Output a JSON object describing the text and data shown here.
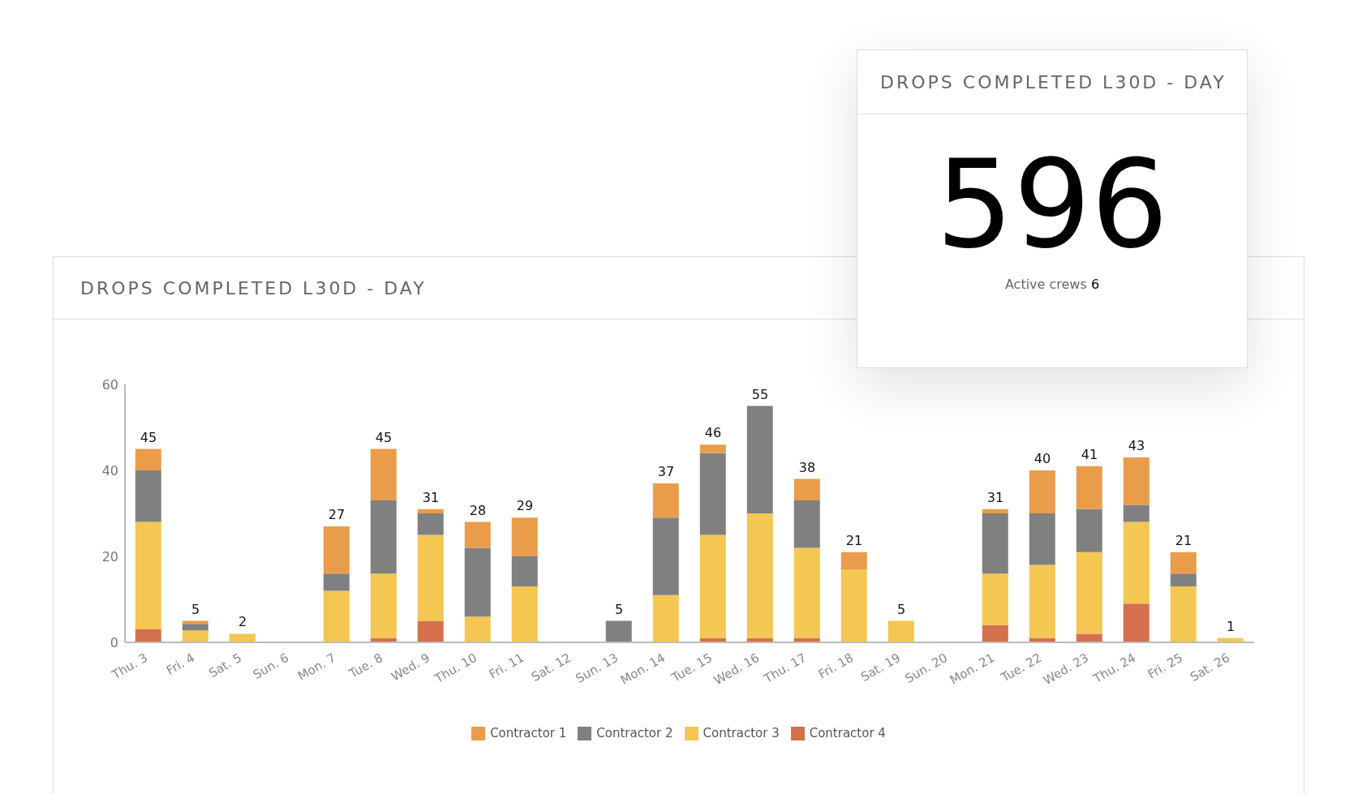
{
  "chart_data": [
    {
      "type": "bar",
      "title": "DROPS COMPLETED L30D - DAY",
      "stacked": true,
      "categories": [
        "Thu. 3",
        "Fri. 4",
        "Sat. 5",
        "Sun. 6",
        "Mon. 7",
        "Tue. 8",
        "Wed. 9",
        "Thu. 10",
        "Fri. 11",
        "Sat. 12",
        "Sun. 13",
        "Mon. 14",
        "Tue. 15",
        "Wed. 16",
        "Thu. 17",
        "Fri. 18",
        "Sat. 19",
        "Sun. 20",
        "Mon. 21",
        "Tue. 22",
        "Wed. 23",
        "Thu. 24",
        "Fri. 25",
        "Sat. 26"
      ],
      "series": [
        {
          "name": "Contractor 4",
          "color": "#d4704e",
          "values": [
            3,
            0.3,
            0,
            0,
            0,
            1,
            5,
            0,
            0,
            0,
            0,
            0,
            1,
            1,
            1,
            0,
            0,
            0,
            4,
            1,
            2,
            9,
            0,
            0
          ]
        },
        {
          "name": "Contractor 3",
          "color": "#f4c752",
          "values": [
            25,
            2.5,
            2,
            0,
            12,
            15,
            20,
            6,
            13,
            0,
            0,
            11,
            24,
            29,
            21,
            17,
            5,
            0,
            12,
            17,
            19,
            19,
            13,
            1
          ]
        },
        {
          "name": "Contractor 2",
          "color": "#808080",
          "values": [
            12,
            1.5,
            0,
            0,
            4,
            17,
            5,
            16,
            7,
            0,
            5,
            18,
            19,
            25,
            11,
            0,
            0,
            0,
            14,
            12,
            10,
            4,
            3,
            0
          ]
        },
        {
          "name": "Contractor 1",
          "color": "#e99d4a",
          "values": [
            5,
            0.7,
            0,
            0,
            11,
            12,
            1,
            6,
            9,
            0,
            0,
            8,
            2,
            0,
            5,
            4,
            0,
            0,
            1,
            10,
            10,
            11,
            5,
            0
          ]
        }
      ],
      "totals": [
        "45",
        "5",
        "2",
        null,
        "27",
        "45",
        "31",
        "28",
        "29",
        null,
        "5",
        "37",
        "46",
        "55",
        "38",
        "21",
        "5",
        null,
        "31",
        "40",
        "41",
        "43",
        "21",
        "1"
      ],
      "ylim": [
        0,
        60
      ],
      "yticks": [
        0,
        20,
        40,
        60
      ],
      "grid": false,
      "legend": "bottom"
    },
    {
      "type": "other",
      "title": "DROPS COMPLETED L30D - DAY",
      "annotations": [
        "596",
        "Active crews",
        "6"
      ]
    }
  ]
}
